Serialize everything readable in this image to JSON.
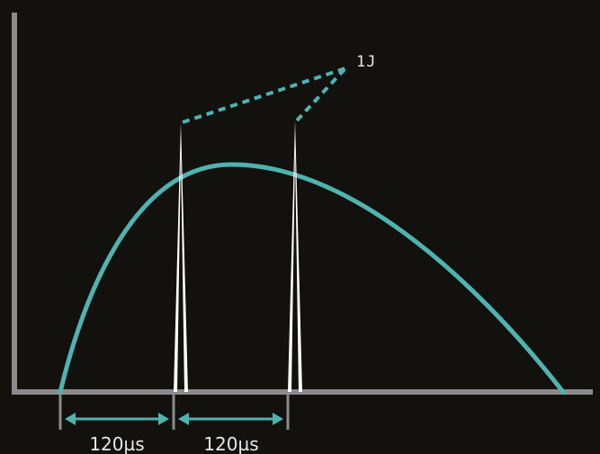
{
  "colors": {
    "background": "#12110e",
    "axis": "#8a8a8a",
    "curve": "#4fb3b0",
    "pulse": "#ffffff",
    "text": "#e8e8e8"
  },
  "labels": {
    "energy": "1J",
    "interval_1": "120µs",
    "interval_2": "120µs"
  }
}
